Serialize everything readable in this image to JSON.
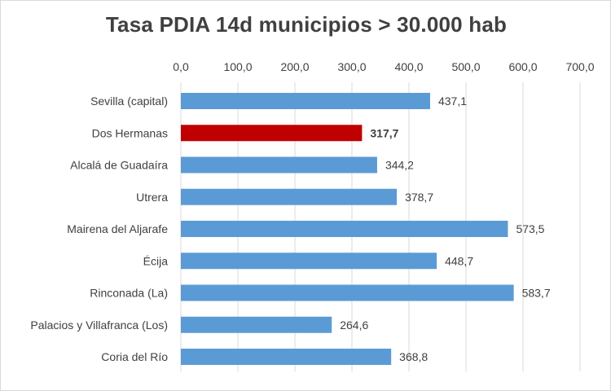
{
  "chart_data": {
    "type": "bar",
    "orientation": "horizontal",
    "title": "Tasa  PDIA  14d municipios  > 30.000 hab",
    "categories": [
      "Sevilla (capital)",
      "Dos Hermanas",
      "Alcalá de Guadaíra",
      "Utrera",
      "Mairena del Aljarafe",
      "Écija",
      "Rinconada (La)",
      "Palacios y Villafranca (Los)",
      "Coria del Río"
    ],
    "values": [
      437.1,
      317.7,
      344.2,
      378.7,
      573.5,
      448.7,
      583.7,
      264.6,
      368.8
    ],
    "data_labels": [
      "437,1",
      "317,7",
      "344,2",
      "378,7",
      "573,5",
      "448,7",
      "583,7",
      "264,6",
      "368,8"
    ],
    "highlight_index": 1,
    "x_ticks": [
      0,
      100,
      200,
      300,
      400,
      500,
      600,
      700
    ],
    "x_tick_labels": [
      "0,0",
      "100,0",
      "200,0",
      "300,0",
      "400,0",
      "500,0",
      "600,0",
      "700,0"
    ],
    "xlim": [
      0,
      700
    ],
    "x_axis_position": "top",
    "grid": true,
    "xlabel": "",
    "ylabel": "",
    "colors": {
      "bar": "#5b9bd5",
      "bar_highlight": "#c00000",
      "grid": "#d9d9d9",
      "text": "#404040"
    }
  }
}
